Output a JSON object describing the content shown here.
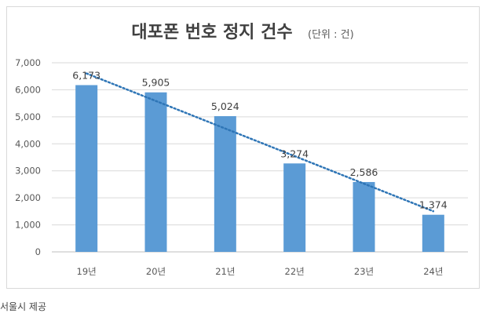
{
  "chart_data": {
    "type": "bar",
    "title": "대포폰 번호 정지 건수",
    "unit_note": "(단위 : 건)",
    "categories": [
      "19년",
      "20년",
      "21년",
      "22년",
      "23년",
      "24년"
    ],
    "values": [
      6173,
      5905,
      5024,
      3274,
      2586,
      1374
    ],
    "value_labels": [
      "6,173",
      "5,905",
      "5,024",
      "3,274",
      "2,586",
      "1,374"
    ],
    "ylim": [
      0,
      7000
    ],
    "yticks": [
      0,
      1000,
      2000,
      3000,
      4000,
      5000,
      6000,
      7000
    ],
    "ytick_labels": [
      "0",
      "1,000",
      "2,000",
      "3,000",
      "4,000",
      "5,000",
      "6,000",
      "7,000"
    ],
    "trendline": "linear",
    "grid": true,
    "xlabel": "",
    "ylabel": "",
    "bar_color": "#5b9bd5",
    "trend_color": "#2e75b6"
  },
  "source": "서울시 제공"
}
